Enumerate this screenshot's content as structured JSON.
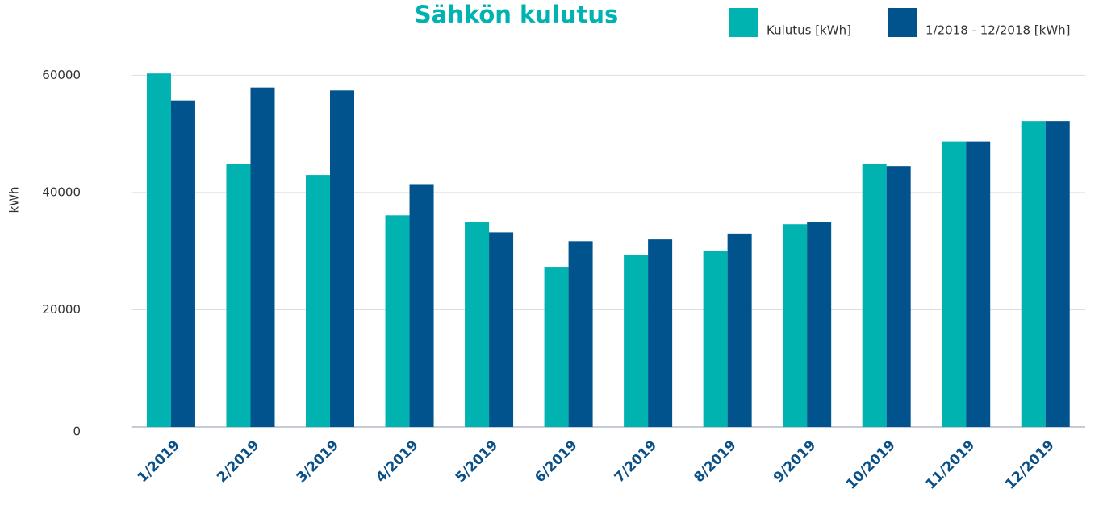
{
  "chart_data": {
    "type": "bar",
    "title": "Sähkön kulutus",
    "y_label": "kWh",
    "categories": [
      "1/2019",
      "2/2019",
      "3/2019",
      "4/2019",
      "5/2019",
      "6/2019",
      "7/2019",
      "8/2019",
      "9/2019",
      "10/2019",
      "11/2019",
      "12/2019"
    ],
    "series": [
      {
        "name": "Kulutus [kWh]",
        "color": "#00b2b0",
        "values": [
          60300,
          44900,
          43000,
          36100,
          34900,
          27200,
          29400,
          30100,
          34600,
          44900,
          48700,
          52200
        ]
      },
      {
        "name": "1/2018 - 12/2018 [kWh]",
        "color": "#00538c",
        "values": [
          55700,
          57900,
          57400,
          41300,
          33200,
          31700,
          32000,
          33000,
          34900,
          44500,
          48700,
          52200
        ]
      }
    ],
    "ylim": [
      0,
      65000
    ],
    "yticks": [
      0,
      20000,
      40000,
      60000
    ],
    "grid": true
  }
}
